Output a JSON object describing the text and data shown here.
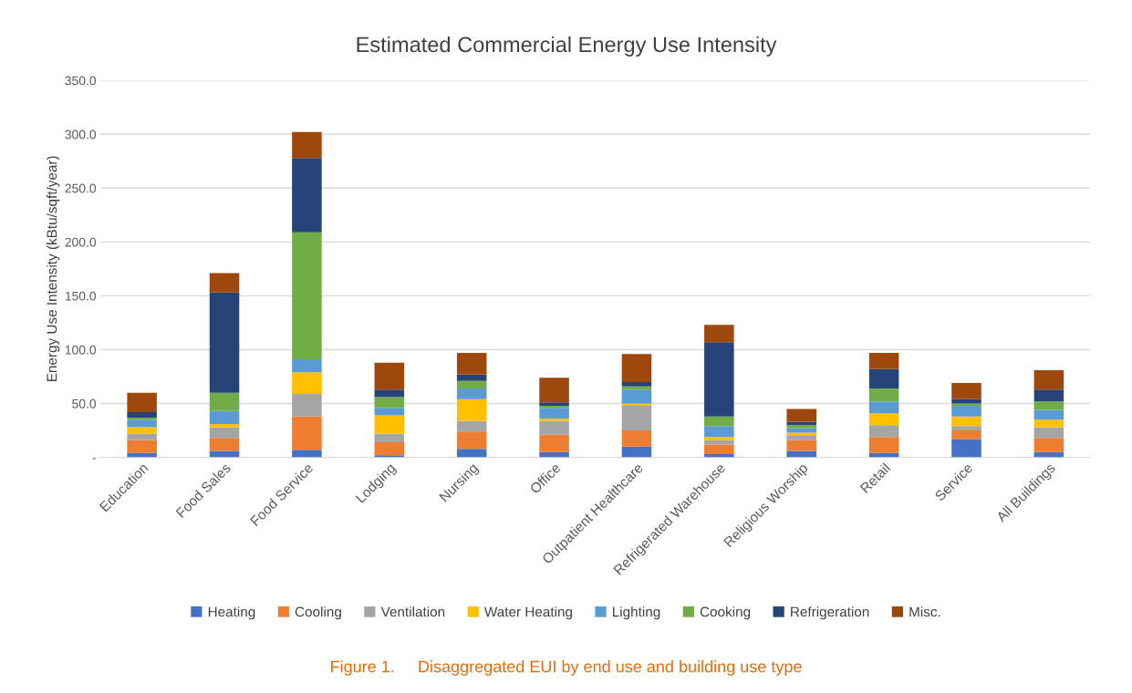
{
  "chart_data": {
    "type": "bar",
    "stacked": true,
    "title": "Estimated Commercial Energy Use Intensity",
    "ylabel": "Energy Use Intensity (kBtu/sqft/year)",
    "categories": [
      "Education",
      "Food Sales",
      "Food Service",
      "Lodging",
      "Nursing",
      "Office",
      "Outpatient Healthcare",
      "Refrigerated Warehouse",
      "Religious Worship",
      "Retail",
      "Service",
      "All Buildings"
    ],
    "series": [
      {
        "name": "Heating",
        "color": "#4472c4",
        "values": [
          4,
          6,
          7,
          2,
          8,
          5,
          10,
          3,
          6,
          4,
          17,
          5
        ]
      },
      {
        "name": "Cooling",
        "color": "#ed7d31",
        "values": [
          12,
          12,
          31,
          12,
          16,
          16,
          15,
          9,
          10,
          15,
          8,
          13
        ]
      },
      {
        "name": "Ventilation",
        "color": "#a5a5a5",
        "values": [
          6,
          10,
          21,
          8,
          10,
          13,
          23,
          4,
          4,
          11,
          4,
          10
        ]
      },
      {
        "name": "Water Heating",
        "color": "#ffc000",
        "values": [
          6,
          3,
          20,
          17,
          20,
          2,
          2,
          3,
          3,
          11,
          9,
          7
        ]
      },
      {
        "name": "Lighting",
        "color": "#5b9bd5",
        "values": [
          7,
          12,
          12,
          7,
          10,
          10,
          13,
          10,
          4,
          11,
          10,
          9
        ]
      },
      {
        "name": "Cooking",
        "color": "#70ad47",
        "values": [
          2,
          17,
          118,
          10,
          7,
          2,
          3,
          9,
          3,
          12,
          2,
          8
        ]
      },
      {
        "name": "Refrigeration",
        "color": "#264478",
        "values": [
          5,
          93,
          69,
          7,
          6,
          3,
          4,
          69,
          3,
          18,
          4,
          11
        ]
      },
      {
        "name": "Misc.",
        "color": "#9e480e",
        "values": [
          18,
          18,
          24,
          25,
          20,
          23,
          26,
          16,
          12,
          15,
          15,
          18
        ]
      }
    ],
    "ylim": [
      0,
      350
    ],
    "yticks": [
      {
        "value": 0,
        "label": "-"
      },
      {
        "value": 50,
        "label": "50.0"
      },
      {
        "value": 100,
        "label": "100.0"
      },
      {
        "value": 150,
        "label": "150.0"
      },
      {
        "value": 200,
        "label": "200.0"
      },
      {
        "value": 250,
        "label": "250.0"
      },
      {
        "value": 300,
        "label": "300.0"
      },
      {
        "value": 350,
        "label": "350.0"
      }
    ],
    "grid": "y",
    "legend": "bottom",
    "annotations": [
      "Figure 1.     Disaggregated EUI by end use and building use type"
    ]
  }
}
